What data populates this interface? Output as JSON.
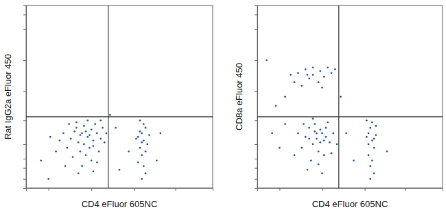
{
  "chart_data": [
    {
      "type": "scatter",
      "xlabel": "CD4 eFluor 605NC",
      "ylabel": "Rat IgG2a eFluor 450",
      "x": [
        30,
        33,
        35,
        28,
        36,
        31,
        38,
        26,
        34,
        40,
        29,
        37,
        32,
        24,
        41,
        27,
        35,
        22,
        39,
        30,
        20,
        42,
        33,
        25,
        36,
        18,
        28,
        38,
        43,
        16,
        31,
        34,
        29,
        32,
        36,
        27,
        23,
        40,
        13,
        21,
        62,
        63,
        61,
        64,
        60,
        65,
        62,
        63,
        61,
        64,
        60,
        63,
        62,
        66,
        59,
        64,
        61,
        62,
        8,
        50,
        48,
        55,
        70,
        12,
        45,
        72
      ],
      "y": [
        30,
        28,
        32,
        25,
        26,
        34,
        30,
        31,
        22,
        27,
        20,
        35,
        18,
        27,
        33,
        36,
        15,
        22,
        20,
        12,
        30,
        25,
        37,
        17,
        9,
        26,
        8,
        14,
        30,
        20,
        24,
        29,
        29,
        31,
        23,
        33,
        35,
        37,
        28,
        12,
        30,
        26,
        22,
        33,
        28,
        24,
        18,
        35,
        31,
        20,
        14,
        12,
        25,
        29,
        27,
        8,
        37,
        5,
        15,
        10,
        33,
        20,
        15,
        5,
        40,
        30
      ],
      "xlim": [
        0,
        100
      ],
      "ylim": [
        0,
        100
      ],
      "xticks": [
        12,
        35,
        58,
        80
      ],
      "yticks": [
        5,
        11,
        16,
        24,
        37,
        53,
        70,
        87,
        95
      ],
      "tick_labels": false,
      "color": "#2f5fb3",
      "marker": "point",
      "quadrant_x": 44,
      "quadrant_y": 39
    },
    {
      "type": "scatter",
      "xlabel": "CD4 eFluor 605NC",
      "ylabel": "CD8a eFluor 450",
      "x": [
        22,
        26,
        30,
        34,
        38,
        28,
        33,
        40,
        20,
        36,
        24,
        42,
        30,
        18,
        35,
        27,
        32,
        35,
        30,
        37,
        28,
        33,
        39,
        26,
        31,
        36,
        34,
        29,
        41,
        24,
        38,
        27,
        33,
        22,
        40,
        30,
        35,
        25,
        43,
        20,
        37,
        32,
        28,
        34,
        31,
        36,
        15,
        12,
        60,
        62,
        61,
        63,
        59,
        62,
        60,
        64,
        61,
        63,
        60,
        62,
        64,
        59,
        61,
        63,
        10,
        48,
        5,
        52,
        15,
        70,
        45,
        8
      ],
      "y": [
        63,
        65,
        62,
        64,
        66,
        60,
        58,
        63,
        58,
        61,
        56,
        65,
        66,
        62,
        55,
        62,
        27,
        30,
        24,
        28,
        33,
        20,
        25,
        28,
        35,
        18,
        32,
        15,
        30,
        22,
        36,
        10,
        13,
        30,
        19,
        38,
        8,
        35,
        24,
        18,
        33,
        30,
        27,
        25,
        31,
        26,
        35,
        22,
        30,
        26,
        33,
        22,
        28,
        36,
        18,
        29,
        12,
        8,
        24,
        15,
        34,
        37,
        5,
        27,
        45,
        30,
        70,
        15,
        50,
        20,
        50,
        30
      ],
      "xlim": [
        0,
        100
      ],
      "ylim": [
        0,
        100
      ],
      "xticks": [
        12,
        35,
        58,
        80
      ],
      "yticks": [
        5,
        11,
        16,
        24,
        37,
        53,
        70,
        87,
        95
      ],
      "tick_labels": false,
      "color": "#2f5fb3",
      "marker": "point",
      "quadrant_x": 44,
      "quadrant_y": 39
    }
  ]
}
